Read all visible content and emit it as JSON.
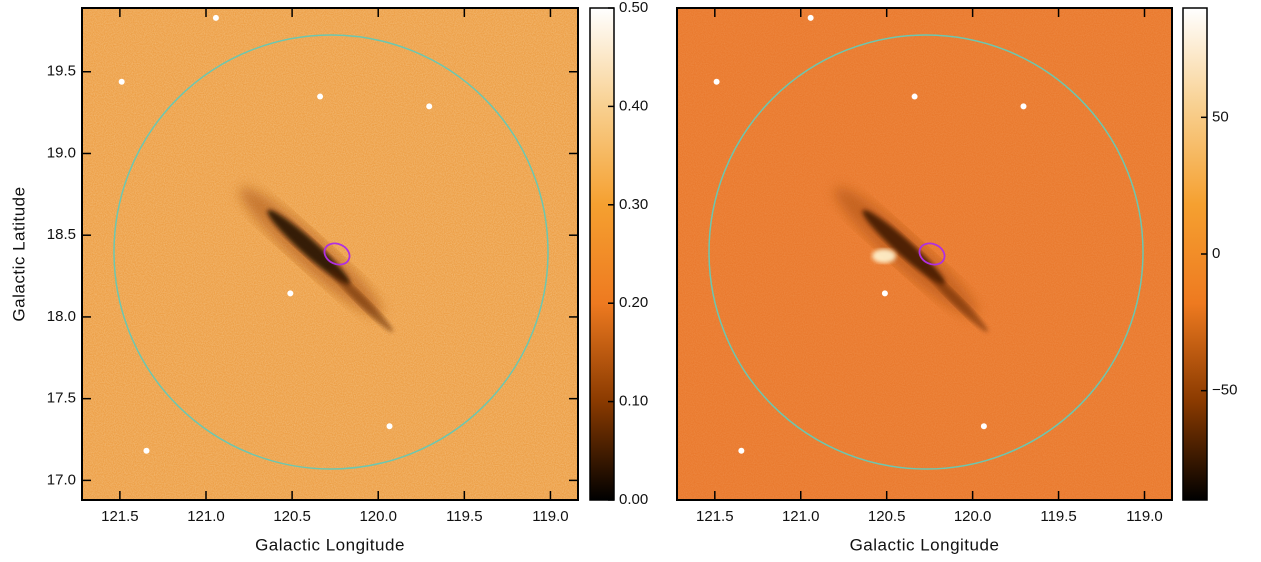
{
  "chart_data": [
    {
      "type": "image",
      "xlabel": "Galactic Longitude",
      "ylabel": "Galactic Latitude",
      "xlim": [
        121.72,
        118.84
      ],
      "xticks": [
        {
          "value": 121.5,
          "label": "121.5"
        },
        {
          "value": 121,
          "label": "121.0"
        },
        {
          "value": 120.5,
          "label": "120.5"
        },
        {
          "value": 120,
          "label": "120.0"
        },
        {
          "value": 119.5,
          "label": "119.5"
        },
        {
          "value": 119,
          "label": "119.0"
        }
      ],
      "ylim": [
        16.88,
        19.89
      ],
      "yticks": [
        {
          "value": 17,
          "label": "17.0"
        },
        {
          "value": 17.5,
          "label": "17.5"
        },
        {
          "value": 18,
          "label": "18.0"
        },
        {
          "value": 18.5,
          "label": "18.5"
        },
        {
          "value": 19,
          "label": "19.0"
        },
        {
          "value": 19.5,
          "label": "19.5"
        }
      ],
      "clim": [
        0,
        0.5
      ],
      "cticks": [
        {
          "value": 0,
          "label": "0.00"
        },
        {
          "value": 0.1,
          "label": "0.10"
        },
        {
          "value": 0.2,
          "label": "0.20"
        },
        {
          "value": 0.3,
          "label": "0.30"
        },
        {
          "value": 0.4,
          "label": "0.40"
        },
        {
          "value": 0.5,
          "label": "0.50"
        }
      ],
      "colormap": [
        "#000000",
        "#8a3a00",
        "#ee7a20",
        "#f5a030",
        "#f8d090",
        "#ffffff"
      ],
      "background": "#eda048"
    },
    {
      "type": "image",
      "xlabel": "Galactic Longitude",
      "xlim": [
        121.72,
        118.84
      ],
      "xticks": [
        {
          "value": 121.5,
          "label": "121.5"
        },
        {
          "value": 121,
          "label": "121.0"
        },
        {
          "value": 120.5,
          "label": "120.5"
        },
        {
          "value": 120,
          "label": "120.0"
        },
        {
          "value": 119.5,
          "label": "119.5"
        },
        {
          "value": 119,
          "label": "119.0"
        }
      ],
      "ylim": [
        16.88,
        19.89
      ],
      "clim": [
        -90,
        90
      ],
      "cticks": [
        {
          "value": -50,
          "label": "−50"
        },
        0,
        50
      ],
      "colormap": [
        "#000000",
        "#8a3a00",
        "#ee7a20",
        "#f5a030",
        "#f8d090",
        "#ffffff"
      ],
      "background": "#ea7a2e"
    }
  ]
}
